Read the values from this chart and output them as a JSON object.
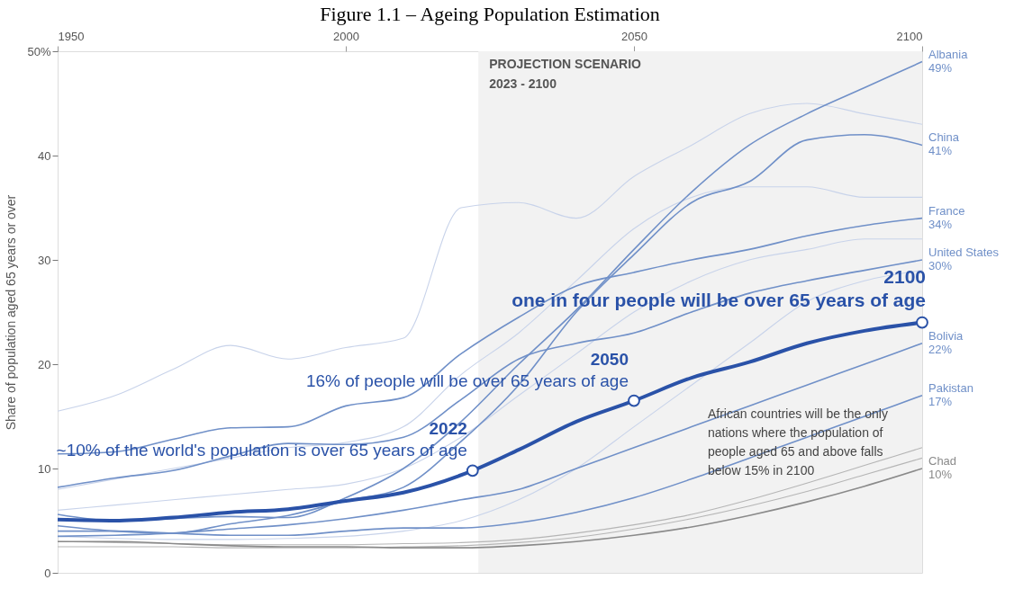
{
  "chart_data": {
    "type": "line",
    "title": "Figure 1.1 – Ageing Population Estimation",
    "ylabel": "Share of population aged 65 years or over",
    "x": [
      1950,
      1960,
      1970,
      1980,
      1990,
      2000,
      2010,
      2020,
      2030,
      2040,
      2050,
      2060,
      2070,
      2080,
      2090,
      2100
    ],
    "xlim": [
      1950,
      2100
    ],
    "xticks": [
      1950,
      2000,
      2050,
      2100
    ],
    "ylim": [
      0,
      50
    ],
    "yticks": [
      0,
      10,
      20,
      30,
      40,
      {
        "value": 50,
        "label": "50%"
      }
    ],
    "grid": false,
    "line_style": "solid",
    "bands": [
      {
        "axis": "x",
        "from": 2023,
        "to": 2100,
        "label": "PROJECTION SCENARIO\n2023 - 2100",
        "color": "#f2f2f2"
      }
    ],
    "series": [
      {
        "type": "line",
        "color": "#c8d3ea",
        "values": [
          15.5,
          17,
          19.5,
          21.8,
          20.5,
          21.6,
          22.5,
          35,
          35.5,
          34,
          38,
          41,
          44,
          45,
          44,
          43
        ]
      },
      {
        "type": "line",
        "color": "#c8d3ea",
        "values": [
          8,
          9,
          10,
          11,
          12,
          12.5,
          14,
          19,
          23,
          28,
          33,
          36,
          37,
          37,
          36,
          36
        ]
      },
      {
        "type": "line",
        "color": "#c8d3ea",
        "values": [
          6,
          6.5,
          7,
          7.5,
          8,
          8.5,
          10,
          13,
          17,
          21,
          25,
          28,
          30,
          31,
          32,
          32
        ]
      },
      {
        "type": "line",
        "color": "#c8d3ea",
        "values": [
          3.5,
          3.3,
          3.2,
          3.2,
          3.3,
          3.5,
          4,
          5,
          7,
          10,
          14,
          18,
          22,
          26,
          28,
          29
        ]
      },
      {
        "type": "line",
        "color": "#b5b5b5",
        "values": [
          3,
          2.9,
          2.8,
          2.7,
          2.7,
          2.7,
          2.8,
          2.9,
          3.2,
          3.8,
          4.6,
          5.6,
          7,
          8.6,
          10.3,
          12
        ]
      },
      {
        "type": "line",
        "color": "#b5b5b5",
        "values": [
          2.5,
          2.5,
          2.5,
          2.4,
          2.4,
          2.4,
          2.5,
          2.6,
          2.9,
          3.4,
          4.2,
          5.2,
          6.4,
          7.8,
          9.4,
          11
        ]
      },
      {
        "type": "line",
        "name": "Albania",
        "color": "#7090c8",
        "values": [
          5.6,
          5.0,
          5.2,
          5.4,
          5.3,
          7.2,
          10.0,
          14.5,
          20,
          25.2,
          31,
          36.5,
          41,
          44,
          46.5,
          49
        ],
        "value_labels": [
          null,
          null,
          null,
          null,
          null,
          null,
          null,
          null,
          null,
          null,
          null,
          null,
          null,
          null,
          null,
          "49%"
        ]
      },
      {
        "type": "line",
        "name": "China",
        "color": "#7090c8",
        "values": [
          4.5,
          4.0,
          3.8,
          4.7,
          5.5,
          6.9,
          8.2,
          12.6,
          18,
          25,
          30.5,
          35.5,
          37.5,
          41.5,
          42,
          41
        ],
        "value_labels": [
          null,
          null,
          null,
          null,
          null,
          null,
          null,
          null,
          null,
          null,
          null,
          null,
          null,
          null,
          null,
          "41%"
        ]
      },
      {
        "type": "line",
        "name": "France",
        "color": "#7090c8",
        "values": [
          11.4,
          11.6,
          12.8,
          13.9,
          14.0,
          16.0,
          16.8,
          21,
          24.5,
          27.5,
          28.8,
          30,
          31,
          32.3,
          33.3,
          34
        ],
        "value_labels": [
          null,
          null,
          null,
          null,
          null,
          null,
          null,
          null,
          null,
          null,
          null,
          null,
          null,
          null,
          null,
          "34%"
        ]
      },
      {
        "type": "line",
        "name": "United States",
        "color": "#7090c8",
        "values": [
          8.2,
          9.1,
          9.8,
          11.2,
          12.4,
          12.3,
          13,
          16.6,
          20.5,
          22,
          23,
          25,
          26.8,
          28,
          29,
          30
        ],
        "value_labels": [
          null,
          null,
          null,
          null,
          null,
          null,
          null,
          null,
          null,
          null,
          null,
          null,
          null,
          null,
          null,
          "30%"
        ]
      },
      {
        "type": "line",
        "name": "Bolivia",
        "color": "#7090c8",
        "values": [
          3.5,
          3.6,
          3.8,
          4.2,
          4.6,
          5.2,
          6.0,
          7,
          8,
          10,
          12,
          14,
          16,
          18,
          20,
          22
        ],
        "value_labels": [
          null,
          null,
          null,
          null,
          null,
          null,
          null,
          null,
          null,
          null,
          null,
          null,
          null,
          null,
          null,
          "22%"
        ]
      },
      {
        "type": "line",
        "name": "Pakistan",
        "color": "#7090c8",
        "values": [
          4,
          4,
          3.8,
          3.6,
          3.6,
          4,
          4.3,
          4.3,
          4.8,
          5.8,
          7.2,
          9,
          11,
          13,
          15,
          17
        ],
        "value_labels": [
          null,
          null,
          null,
          null,
          null,
          null,
          null,
          null,
          null,
          null,
          null,
          null,
          null,
          null,
          null,
          "17%"
        ]
      },
      {
        "type": "line",
        "name": "Chad",
        "color": "#8a8a8a",
        "values": [
          3,
          3,
          2.8,
          2.6,
          2.5,
          2.5,
          2.4,
          2.4,
          2.6,
          3,
          3.6,
          4.4,
          5.5,
          6.8,
          8.3,
          10
        ],
        "value_labels": [
          null,
          null,
          null,
          null,
          null,
          null,
          null,
          null,
          null,
          null,
          null,
          null,
          null,
          null,
          null,
          "10%"
        ]
      },
      {
        "color": "#2a52a8",
        "x": [
          1950,
          1960,
          1970,
          1980,
          1990,
          2000,
          2010,
          2022,
          2030,
          2040,
          2050,
          2060,
          2070,
          2080,
          2090,
          2100
        ],
        "values": [
          5.1,
          5.0,
          5.3,
          5.8,
          6.1,
          6.9,
          7.7,
          9.8,
          11.8,
          14.5,
          16.5,
          18.7,
          20.2,
          22.0,
          23.2,
          24.0
        ]
      },
      {
        "type": "scatter",
        "marker": "circle",
        "color": "#2a52a8",
        "x": [
          2022,
          2050,
          2100
        ],
        "values": [
          9.8,
          16.5,
          24.0
        ]
      }
    ],
    "annotations": [
      {
        "text": "2022",
        "x": 2022,
        "y": 9.8
      },
      {
        "text": "~10% of the world's population is over 65 years of age",
        "x": 2022,
        "y": 9.8
      },
      {
        "text": "2050",
        "x": 2050,
        "y": 16.5
      },
      {
        "text": "16% of people will be over 65 years of age",
        "x": 2050,
        "y": 16.5
      },
      {
        "text": "2100",
        "x": 2100,
        "y": 24.0
      },
      {
        "text": "one in four people will be over 65 years of age",
        "x": 2100,
        "y": 24.0
      },
      "African countries will be the only nations where the population of people aged 65 and above falls below 15% in 2100"
    ]
  }
}
